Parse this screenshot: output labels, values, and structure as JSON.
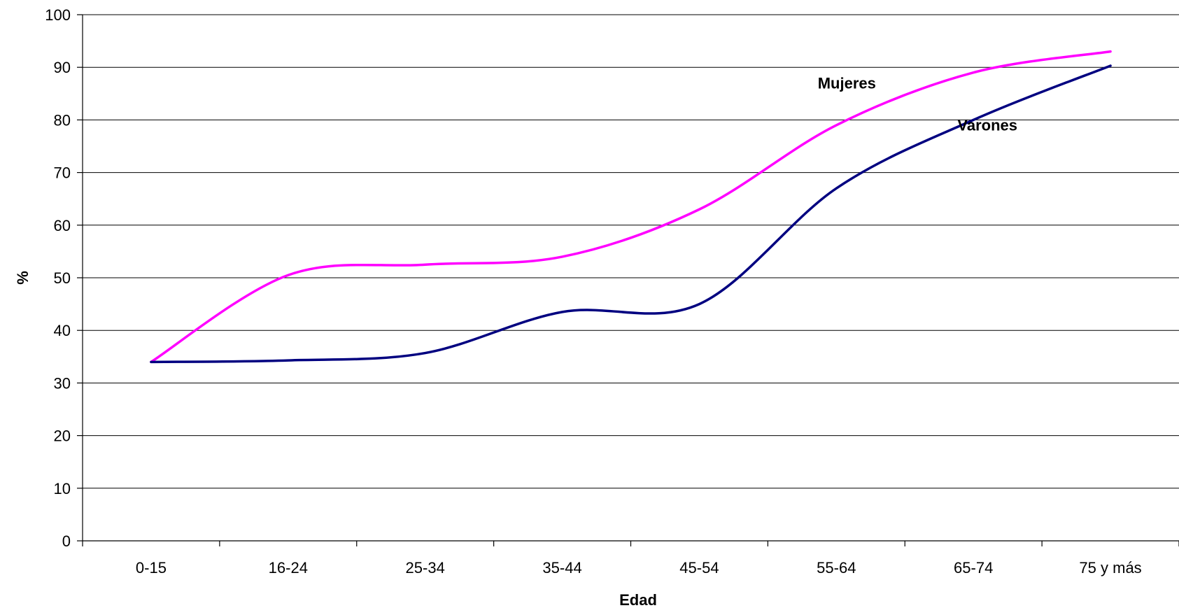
{
  "chart_data": {
    "type": "line",
    "title": "",
    "xlabel": "Edad",
    "ylabel": "%",
    "categories": [
      "0-15",
      "16-24",
      "25-34",
      "35-44",
      "45-54",
      "55-64",
      "65-74",
      "75 y más"
    ],
    "ylim": [
      0,
      100
    ],
    "yticks": [
      0,
      10,
      20,
      30,
      40,
      50,
      60,
      70,
      80,
      90,
      100
    ],
    "grid": true,
    "series": [
      {
        "name": "Mujeres",
        "color": "#ff00ff",
        "values": [
          34,
          50.5,
          52.5,
          54,
          63,
          79,
          89,
          93
        ]
      },
      {
        "name": "Varones",
        "color": "#000080",
        "values": [
          34,
          34.3,
          35.7,
          43.5,
          45,
          67,
          80,
          90.3
        ]
      }
    ]
  }
}
